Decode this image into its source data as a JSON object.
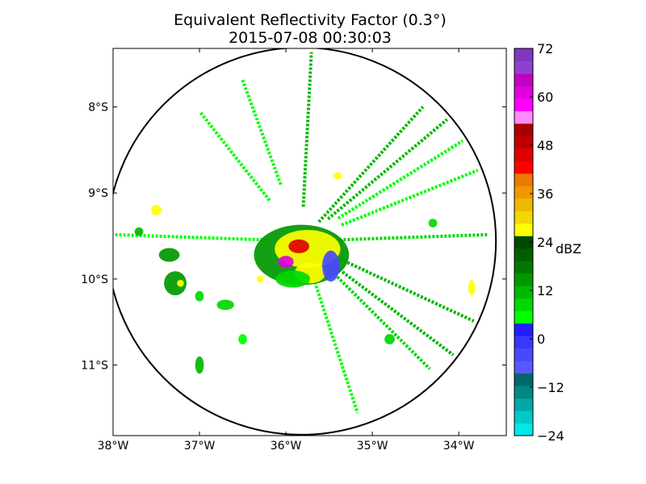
{
  "chart_data": {
    "type": "heatmap",
    "title": "Equivalent Reflectivity Factor (0.3°)",
    "subtitle": "2015-07-08 00:30:03",
    "x_ticks": [
      {
        "value": -38,
        "label": "38°W"
      },
      {
        "value": -37,
        "label": "37°W"
      },
      {
        "value": -36,
        "label": "36°W"
      },
      {
        "value": -35,
        "label": "35°W"
      },
      {
        "value": -34,
        "label": "34°W"
      }
    ],
    "y_ticks": [
      {
        "value": -8,
        "label": "8°S"
      },
      {
        "value": -9,
        "label": "9°S"
      },
      {
        "value": -10,
        "label": "10°S"
      },
      {
        "value": -11,
        "label": "11°S"
      }
    ],
    "xlim": [
      -38.0,
      -33.45
    ],
    "ylim": [
      -11.82,
      -7.32
    ],
    "radar_center": {
      "lon": -35.82,
      "lat": -9.56
    },
    "range_ring_radius_deg": 2.25,
    "colorbar": {
      "label": "dBZ",
      "range": [
        -24,
        72
      ],
      "ticks": [
        {
          "value": 72,
          "label": "72"
        },
        {
          "value": 60,
          "label": "60"
        },
        {
          "value": 48,
          "label": "48"
        },
        {
          "value": 36,
          "label": "36"
        },
        {
          "value": 24,
          "label": "24"
        },
        {
          "value": 12,
          "label": "12"
        },
        {
          "value": 0,
          "label": "0"
        },
        {
          "value": -12,
          "label": "−12"
        },
        {
          "value": -24,
          "label": "−24"
        }
      ],
      "colors": [
        "#00e8e8",
        "#00c8c8",
        "#00a8a8",
        "#008888",
        "#006868",
        "#5858ff",
        "#4848ff",
        "#3838ff",
        "#2020ff",
        "#00ff00",
        "#00d800",
        "#00b800",
        "#009800",
        "#007800",
        "#006000",
        "#004800",
        "#ffff00",
        "#f0d800",
        "#f0b800",
        "#f09800",
        "#ec7800",
        "#ff0000",
        "#e00000",
        "#c00000",
        "#a80000",
        "#ff88ff",
        "#ff00ff",
        "#e000e0",
        "#c000c0",
        "#9040d0",
        "#8038c0"
      ]
    },
    "echo_regions": [
      {
        "lon": -35.82,
        "lat": -9.72,
        "rx": 0.55,
        "ry": 0.35,
        "dbz": 15
      },
      {
        "lon": -35.75,
        "lat": -9.65,
        "rx": 0.38,
        "ry": 0.22,
        "dbz": 27
      },
      {
        "lon": -35.85,
        "lat": -9.62,
        "rx": 0.12,
        "ry": 0.08,
        "dbz": 45
      },
      {
        "lon": -36.0,
        "lat": -9.8,
        "rx": 0.09,
        "ry": 0.07,
        "dbz": 62
      },
      {
        "lon": -35.72,
        "lat": -9.93,
        "rx": 0.18,
        "ry": 0.12,
        "dbz": 27
      },
      {
        "lon": -35.92,
        "lat": -10.0,
        "rx": 0.2,
        "ry": 0.1,
        "dbz": 8
      },
      {
        "lon": -35.48,
        "lat": -9.85,
        "rx": 0.1,
        "ry": 0.18,
        "dbz": -5
      },
      {
        "lon": -37.35,
        "lat": -9.72,
        "rx": 0.12,
        "ry": 0.08,
        "dbz": 15
      },
      {
        "lon": -37.28,
        "lat": -10.05,
        "rx": 0.13,
        "ry": 0.14,
        "dbz": 15
      },
      {
        "lon": -37.22,
        "lat": -10.05,
        "rx": 0.04,
        "ry": 0.04,
        "dbz": 28
      },
      {
        "lon": -37.5,
        "lat": -9.2,
        "rx": 0.06,
        "ry": 0.06,
        "dbz": 26
      },
      {
        "lon": -37.7,
        "lat": -9.45,
        "rx": 0.05,
        "ry": 0.05,
        "dbz": 12
      },
      {
        "lon": -37.0,
        "lat": -10.2,
        "rx": 0.05,
        "ry": 0.06,
        "dbz": 10
      },
      {
        "lon": -36.7,
        "lat": -10.3,
        "rx": 0.1,
        "ry": 0.06,
        "dbz": 8
      },
      {
        "lon": -36.5,
        "lat": -10.7,
        "rx": 0.05,
        "ry": 0.06,
        "dbz": 6
      },
      {
        "lon": -37.0,
        "lat": -11.0,
        "rx": 0.05,
        "ry": 0.1,
        "dbz": 12
      },
      {
        "lon": -35.4,
        "lat": -8.8,
        "rx": 0.05,
        "ry": 0.04,
        "dbz": 26
      },
      {
        "lon": -34.3,
        "lat": -9.35,
        "rx": 0.05,
        "ry": 0.05,
        "dbz": 10
      },
      {
        "lon": -33.85,
        "lat": -10.1,
        "rx": 0.04,
        "ry": 0.09,
        "dbz": 28
      },
      {
        "lon": -34.8,
        "lat": -10.7,
        "rx": 0.06,
        "ry": 0.06,
        "dbz": 10
      },
      {
        "lon": -36.3,
        "lat": -10.0,
        "rx": 0.04,
        "ry": 0.04,
        "dbz": 28
      }
    ],
    "radial_streaks": [
      {
        "az": 3,
        "r0": 0.4,
        "r1": 2.2,
        "dbz": 12
      },
      {
        "az": 42,
        "r0": 0.3,
        "r1": 2.1,
        "dbz": 12
      },
      {
        "az": 50,
        "r0": 0.4,
        "r1": 2.2,
        "dbz": 12
      },
      {
        "az": 58,
        "r0": 0.5,
        "r1": 2.2,
        "dbz": 6
      },
      {
        "az": 68,
        "r0": 0.5,
        "r1": 2.2,
        "dbz": 6
      },
      {
        "az": 88,
        "r0": 0.3,
        "r1": 2.15,
        "dbz": 10
      },
      {
        "az": 115,
        "r0": 0.4,
        "r1": 2.2,
        "dbz": 12
      },
      {
        "az": 127,
        "r0": 0.5,
        "r1": 2.2,
        "dbz": 12
      },
      {
        "az": 135,
        "r0": 0.4,
        "r1": 2.1,
        "dbz": 8
      },
      {
        "az": 162,
        "r0": 0.5,
        "r1": 2.1,
        "dbz": 6
      },
      {
        "az": 272,
        "r0": 0.4,
        "r1": 2.2,
        "dbz": 6
      },
      {
        "az": 322,
        "r0": 0.6,
        "r1": 1.9,
        "dbz": 6
      },
      {
        "az": 340,
        "r0": 0.7,
        "r1": 2.0,
        "dbz": 6
      }
    ]
  }
}
